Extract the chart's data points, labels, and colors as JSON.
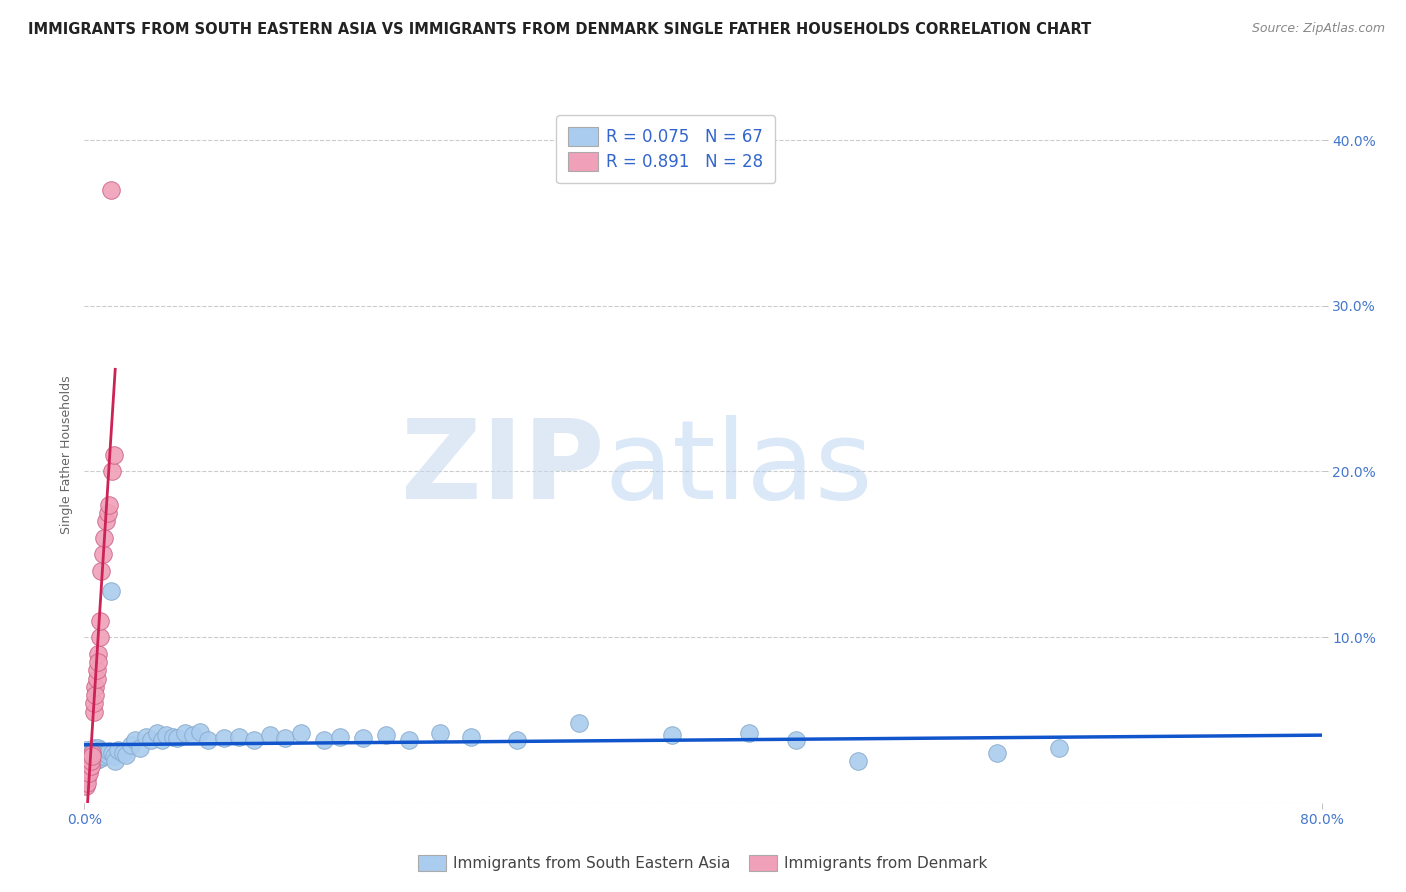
{
  "title": "IMMIGRANTS FROM SOUTH EASTERN ASIA VS IMMIGRANTS FROM DENMARK SINGLE FATHER HOUSEHOLDS CORRELATION CHART",
  "source": "Source: ZipAtlas.com",
  "ylabel": "Single Father Households",
  "watermark_zip": "ZIP",
  "watermark_atlas": "atlas",
  "xlim": [
    0.0,
    0.8
  ],
  "ylim": [
    0.0,
    0.42
  ],
  "xtick_vals": [
    0.0,
    0.8
  ],
  "xtick_labels": [
    "0.0%",
    "80.0%"
  ],
  "ytick_vals": [
    0.1,
    0.2,
    0.3,
    0.4
  ],
  "ytick_labels": [
    "10.0%",
    "20.0%",
    "30.0%",
    "40.0%"
  ],
  "grid_yticks": [
    0.0,
    0.1,
    0.2,
    0.3,
    0.4
  ],
  "series_blue": {
    "label": "Immigrants from South Eastern Asia",
    "R": 0.075,
    "N": 67,
    "color": "#aaccee",
    "edge_color": "#88aacc",
    "trend_color": "#1155cc",
    "x": [
      0.001,
      0.002,
      0.003,
      0.003,
      0.004,
      0.004,
      0.005,
      0.005,
      0.006,
      0.006,
      0.007,
      0.007,
      0.008,
      0.008,
      0.009,
      0.009,
      0.01,
      0.01,
      0.011,
      0.011,
      0.012,
      0.013,
      0.014,
      0.015,
      0.016,
      0.017,
      0.018,
      0.019,
      0.02,
      0.022,
      0.025,
      0.027,
      0.03,
      0.033,
      0.036,
      0.04,
      0.043,
      0.047,
      0.05,
      0.053,
      0.057,
      0.06,
      0.065,
      0.07,
      0.075,
      0.08,
      0.09,
      0.1,
      0.11,
      0.12,
      0.13,
      0.14,
      0.155,
      0.165,
      0.18,
      0.195,
      0.21,
      0.23,
      0.25,
      0.28,
      0.32,
      0.38,
      0.43,
      0.46,
      0.5,
      0.59,
      0.63
    ],
    "y": [
      0.032,
      0.028,
      0.03,
      0.025,
      0.031,
      0.027,
      0.03,
      0.026,
      0.029,
      0.033,
      0.028,
      0.031,
      0.026,
      0.03,
      0.029,
      0.033,
      0.028,
      0.032,
      0.03,
      0.027,
      0.031,
      0.028,
      0.03,
      0.029,
      0.031,
      0.128,
      0.03,
      0.028,
      0.025,
      0.032,
      0.03,
      0.029,
      0.035,
      0.038,
      0.033,
      0.04,
      0.038,
      0.042,
      0.038,
      0.041,
      0.04,
      0.039,
      0.042,
      0.041,
      0.043,
      0.038,
      0.039,
      0.04,
      0.038,
      0.041,
      0.039,
      0.042,
      0.038,
      0.04,
      0.039,
      0.041,
      0.038,
      0.042,
      0.04,
      0.038,
      0.048,
      0.041,
      0.042,
      0.038,
      0.025,
      0.03,
      0.033
    ]
  },
  "series_pink": {
    "label": "Immigrants from Denmark",
    "R": 0.891,
    "N": 28,
    "color": "#f0a0b8",
    "edge_color": "#cc6688",
    "trend_color": "#cc2255",
    "x": [
      0.001,
      0.002,
      0.002,
      0.003,
      0.003,
      0.004,
      0.004,
      0.005,
      0.005,
      0.006,
      0.006,
      0.007,
      0.007,
      0.008,
      0.008,
      0.009,
      0.009,
      0.01,
      0.01,
      0.011,
      0.012,
      0.013,
      0.014,
      0.015,
      0.016,
      0.017,
      0.018,
      0.019
    ],
    "y": [
      0.01,
      0.015,
      0.012,
      0.02,
      0.018,
      0.022,
      0.025,
      0.03,
      0.028,
      0.055,
      0.06,
      0.07,
      0.065,
      0.075,
      0.08,
      0.09,
      0.085,
      0.1,
      0.11,
      0.14,
      0.15,
      0.16,
      0.17,
      0.175,
      0.18,
      0.37,
      0.2,
      0.21
    ]
  },
  "legend_blue_color": "#aaccee",
  "legend_pink_color": "#f0a0b8",
  "title_fontsize": 10.5,
  "axis_label_fontsize": 9,
  "tick_fontsize": 10,
  "background_color": "#ffffff",
  "grid_color": "#cccccc"
}
